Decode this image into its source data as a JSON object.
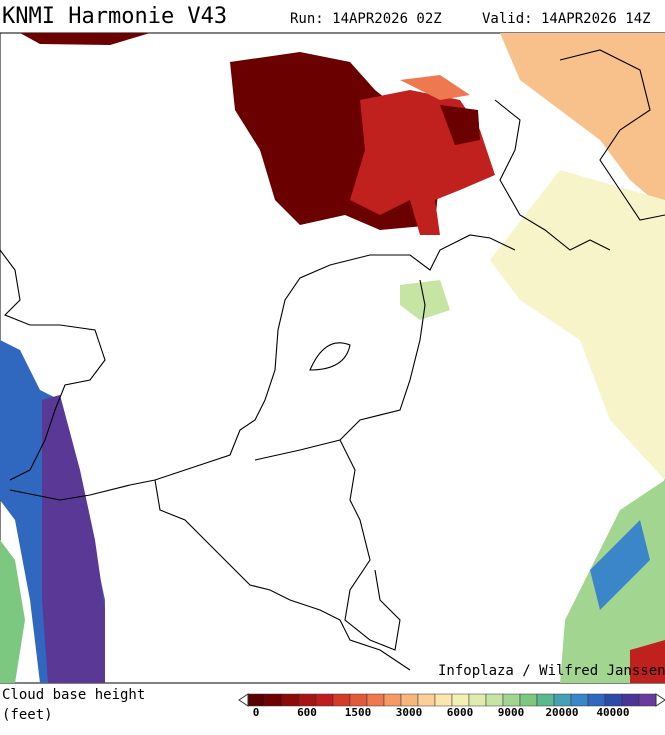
{
  "header": {
    "title": "KNMI Harmonie V43",
    "run": "Run: 14APR2026 02Z",
    "valid": "Valid: 14APR2026 14Z"
  },
  "map": {
    "credit": "Infoplaza / Wilfred Janssen"
  },
  "legend": {
    "title": "Cloud base height",
    "unit": "(feet)",
    "ticks": [
      0,
      600,
      1500,
      3000,
      6000,
      9000,
      20000,
      40000
    ],
    "colors": [
      "#5a0000",
      "#700000",
      "#8c0a0a",
      "#a81414",
      "#c01e1e",
      "#d43c28",
      "#e25a3c",
      "#ee7850",
      "#f59a64",
      "#f8b67c",
      "#fad096",
      "#fce6b0",
      "#f4f0b4",
      "#e0ecae",
      "#c6e4a2",
      "#a2d690",
      "#7cc880",
      "#5cb890",
      "#46a0b4",
      "#3a86c8",
      "#3068c0",
      "#2e4aa8",
      "#4a3496",
      "#6a3aa0"
    ]
  }
}
